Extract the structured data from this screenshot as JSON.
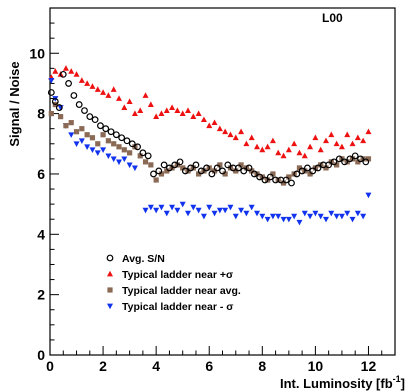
{
  "chart_data": {
    "type": "scatter",
    "panel_label": "L00",
    "xlabel": "Int. Luminosity [fb",
    "xlabel_sup": "-1",
    "xlabel_end": "]",
    "ylabel": "Signal / Noise",
    "xlim": [
      0,
      13
    ],
    "ylim": [
      0,
      11.5
    ],
    "xticks": [
      0,
      2,
      4,
      6,
      8,
      10,
      12
    ],
    "yticks": [
      0,
      2,
      4,
      6,
      8,
      10
    ],
    "grid": false,
    "legend_position": "bottom-left",
    "series": [
      {
        "name": "Avg. S/N",
        "marker": "open-circle",
        "color": "#000000",
        "x": [
          0.05,
          0.2,
          0.35,
          0.5,
          0.7,
          0.9,
          1.1,
          1.3,
          1.5,
          1.7,
          1.9,
          2.1,
          2.3,
          2.5,
          2.7,
          2.9,
          3.1,
          3.3,
          3.5,
          3.7,
          3.9,
          4.1,
          4.3,
          4.5,
          4.7,
          4.9,
          5.1,
          5.3,
          5.5,
          5.7,
          5.9,
          6.1,
          6.3,
          6.5,
          6.7,
          6.9,
          7.1,
          7.3,
          7.5,
          7.7,
          7.9,
          8.1,
          8.3,
          8.5,
          8.7,
          8.9,
          9.1,
          9.3,
          9.5,
          9.7,
          9.9,
          10.1,
          10.3,
          10.5,
          10.7,
          10.9,
          11.1,
          11.3,
          11.5,
          11.7,
          11.9
        ],
        "y": [
          8.7,
          8.4,
          8.2,
          9.3,
          9.0,
          8.6,
          8.3,
          8.1,
          7.9,
          7.8,
          7.6,
          7.5,
          7.4,
          7.3,
          7.2,
          7.1,
          7.0,
          6.9,
          6.7,
          6.6,
          6.0,
          6.1,
          6.3,
          6.2,
          6.3,
          6.4,
          6.1,
          6.2,
          6.3,
          6.1,
          6.2,
          6.0,
          6.2,
          6.1,
          6.3,
          6.2,
          6.2,
          6.1,
          6.2,
          6.0,
          5.9,
          5.8,
          5.9,
          5.8,
          5.8,
          5.8,
          5.7,
          6.0,
          6.1,
          6.2,
          6.1,
          6.2,
          6.3,
          6.3,
          6.4,
          6.5,
          6.4,
          6.5,
          6.6,
          6.5,
          6.4
        ]
      },
      {
        "name": "Typical ladder near +σ",
        "marker": "triangle-up",
        "color": "#ee1111",
        "x": [
          0.05,
          0.2,
          0.4,
          0.6,
          0.8,
          1.0,
          1.2,
          1.4,
          1.6,
          1.8,
          2.0,
          2.2,
          2.4,
          2.6,
          2.8,
          3.0,
          3.2,
          3.4,
          3.6,
          3.8,
          4.0,
          4.2,
          4.4,
          4.6,
          4.8,
          5.0,
          5.2,
          5.4,
          5.6,
          5.8,
          6.0,
          6.2,
          6.4,
          6.6,
          6.8,
          7.0,
          7.2,
          7.4,
          7.6,
          7.8,
          8.0,
          8.2,
          8.4,
          8.6,
          8.8,
          9.0,
          9.2,
          9.4,
          9.6,
          9.8,
          10.0,
          10.2,
          10.4,
          10.6,
          10.8,
          11.0,
          11.2,
          11.4,
          11.6,
          11.8,
          12.0
        ],
        "y": [
          9.2,
          9.4,
          9.3,
          9.5,
          9.4,
          9.3,
          9.1,
          9.0,
          8.9,
          8.8,
          8.7,
          8.6,
          8.8,
          8.5,
          8.2,
          8.4,
          8.0,
          8.1,
          8.6,
          8.3,
          7.9,
          8.0,
          8.1,
          8.2,
          8.1,
          8.0,
          8.1,
          7.9,
          8.0,
          7.8,
          7.6,
          7.7,
          7.5,
          7.4,
          7.3,
          7.2,
          7.4,
          7.0,
          7.2,
          6.9,
          6.8,
          6.9,
          7.1,
          6.7,
          6.6,
          6.8,
          7.0,
          6.7,
          6.6,
          6.9,
          7.2,
          6.8,
          7.1,
          7.3,
          7.0,
          6.9,
          7.3,
          7.0,
          7.2,
          7.1,
          7.4
        ]
      },
      {
        "name": "Typical ladder near avg.",
        "marker": "square",
        "color": "#8b6a55",
        "x": [
          0.05,
          0.2,
          0.4,
          0.6,
          0.8,
          1.0,
          1.2,
          1.4,
          1.6,
          1.8,
          2.0,
          2.2,
          2.4,
          2.6,
          2.8,
          3.0,
          3.2,
          3.4,
          3.6,
          3.8,
          4.0,
          4.2,
          4.4,
          4.6,
          4.8,
          5.0,
          5.2,
          5.4,
          5.6,
          5.8,
          6.0,
          6.2,
          6.4,
          6.6,
          6.8,
          7.0,
          7.2,
          7.4,
          7.6,
          7.8,
          8.0,
          8.2,
          8.4,
          8.6,
          8.8,
          9.0,
          9.2,
          9.4,
          9.6,
          9.8,
          10.0,
          10.2,
          10.4,
          10.6,
          10.8,
          11.0,
          11.2,
          11.4,
          11.6,
          11.8,
          12.0
        ],
        "y": [
          8.0,
          8.3,
          7.9,
          7.6,
          7.7,
          7.4,
          7.5,
          7.3,
          7.2,
          7.0,
          7.3,
          7.1,
          7.0,
          6.9,
          6.8,
          6.7,
          6.9,
          6.6,
          6.4,
          6.3,
          5.8,
          6.0,
          6.1,
          6.2,
          6.3,
          6.2,
          6.1,
          6.2,
          6.0,
          6.1,
          6.2,
          6.1,
          6.3,
          6.0,
          6.2,
          6.1,
          6.3,
          6.2,
          6.1,
          6.0,
          5.9,
          5.8,
          6.0,
          5.8,
          5.7,
          5.9,
          6.0,
          6.2,
          6.1,
          6.0,
          6.2,
          6.3,
          6.2,
          6.4,
          6.3,
          6.5,
          6.4,
          6.5,
          6.4,
          6.5,
          6.5
        ]
      },
      {
        "name": "Typical ladder near - σ",
        "marker": "triangle-down",
        "color": "#1133ee",
        "x": [
          0.05,
          0.2,
          0.4,
          0.6,
          0.8,
          1.0,
          1.2,
          1.4,
          1.6,
          1.8,
          2.0,
          2.2,
          2.4,
          2.6,
          2.8,
          3.0,
          3.2,
          3.6,
          3.8,
          4.0,
          4.2,
          4.4,
          4.6,
          4.8,
          5.0,
          5.2,
          5.4,
          5.6,
          5.8,
          6.0,
          6.2,
          6.4,
          6.6,
          6.8,
          7.0,
          7.2,
          7.4,
          7.6,
          7.8,
          8.0,
          8.2,
          8.4,
          8.6,
          8.8,
          9.0,
          9.2,
          9.4,
          9.6,
          9.8,
          10.0,
          10.2,
          10.4,
          10.6,
          10.8,
          11.0,
          11.2,
          11.4,
          11.6,
          11.8,
          12.0
        ],
        "y": [
          9.1,
          8.5,
          8.2,
          7.6,
          7.3,
          7.0,
          7.1,
          6.9,
          6.8,
          6.7,
          6.8,
          6.6,
          6.5,
          6.4,
          6.5,
          6.3,
          6.2,
          4.8,
          4.9,
          4.8,
          4.9,
          4.7,
          4.9,
          4.8,
          5.0,
          4.7,
          4.9,
          4.8,
          4.6,
          4.9,
          4.7,
          4.8,
          4.8,
          4.9,
          4.6,
          4.8,
          4.7,
          4.9,
          4.7,
          4.6,
          4.5,
          4.6,
          4.6,
          4.5,
          4.5,
          4.6,
          4.4,
          4.7,
          4.6,
          4.7,
          4.6,
          4.5,
          4.7,
          4.6,
          4.6,
          4.7,
          4.5,
          4.7,
          4.6,
          5.3
        ]
      }
    ]
  }
}
